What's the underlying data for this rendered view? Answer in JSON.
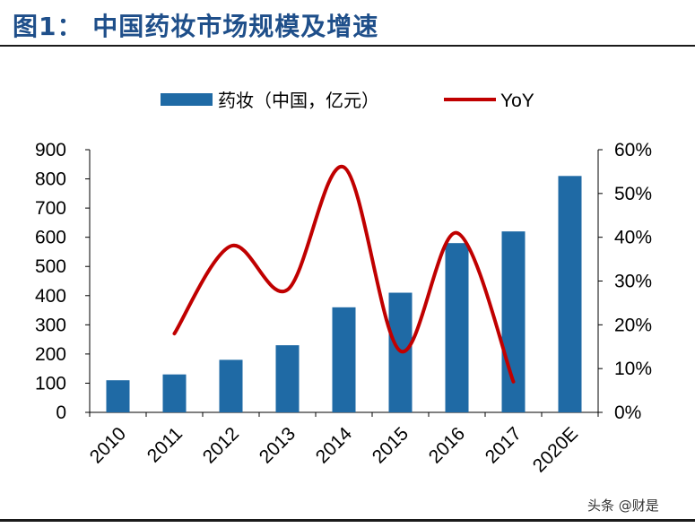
{
  "figure_title": "图1：  中国药妆市场规模及增速",
  "watermark": "头条 @财是",
  "colors": {
    "bar": "#1f6aa5",
    "line": "#c00000",
    "title": "#1f4f8a"
  },
  "chart_data": {
    "type": "bar",
    "title": "",
    "xlabel": "",
    "ylabel": "",
    "categories": [
      "2010",
      "2011",
      "2012",
      "2013",
      "2014",
      "2015",
      "2016",
      "2017",
      "2020E"
    ],
    "series": [
      {
        "name": "药妆（中国，亿元）",
        "type": "bar",
        "axis": "left",
        "values": [
          110,
          130,
          180,
          230,
          360,
          410,
          580,
          620,
          810
        ]
      },
      {
        "name": "YoY",
        "type": "line",
        "axis": "right",
        "values": [
          null,
          0.18,
          0.38,
          0.28,
          0.56,
          0.14,
          0.41,
          0.07,
          null
        ]
      }
    ],
    "ylim": [
      0,
      900
    ],
    "yticks": [
      "0",
      "100",
      "200",
      "300",
      "400",
      "500",
      "600",
      "700",
      "800",
      "900"
    ],
    "y2lim": [
      0,
      0.6
    ],
    "y2ticks": [
      "0%",
      "10%",
      "20%",
      "30%",
      "40%",
      "50%",
      "60%"
    ],
    "legend": "top-center",
    "grid": false
  }
}
